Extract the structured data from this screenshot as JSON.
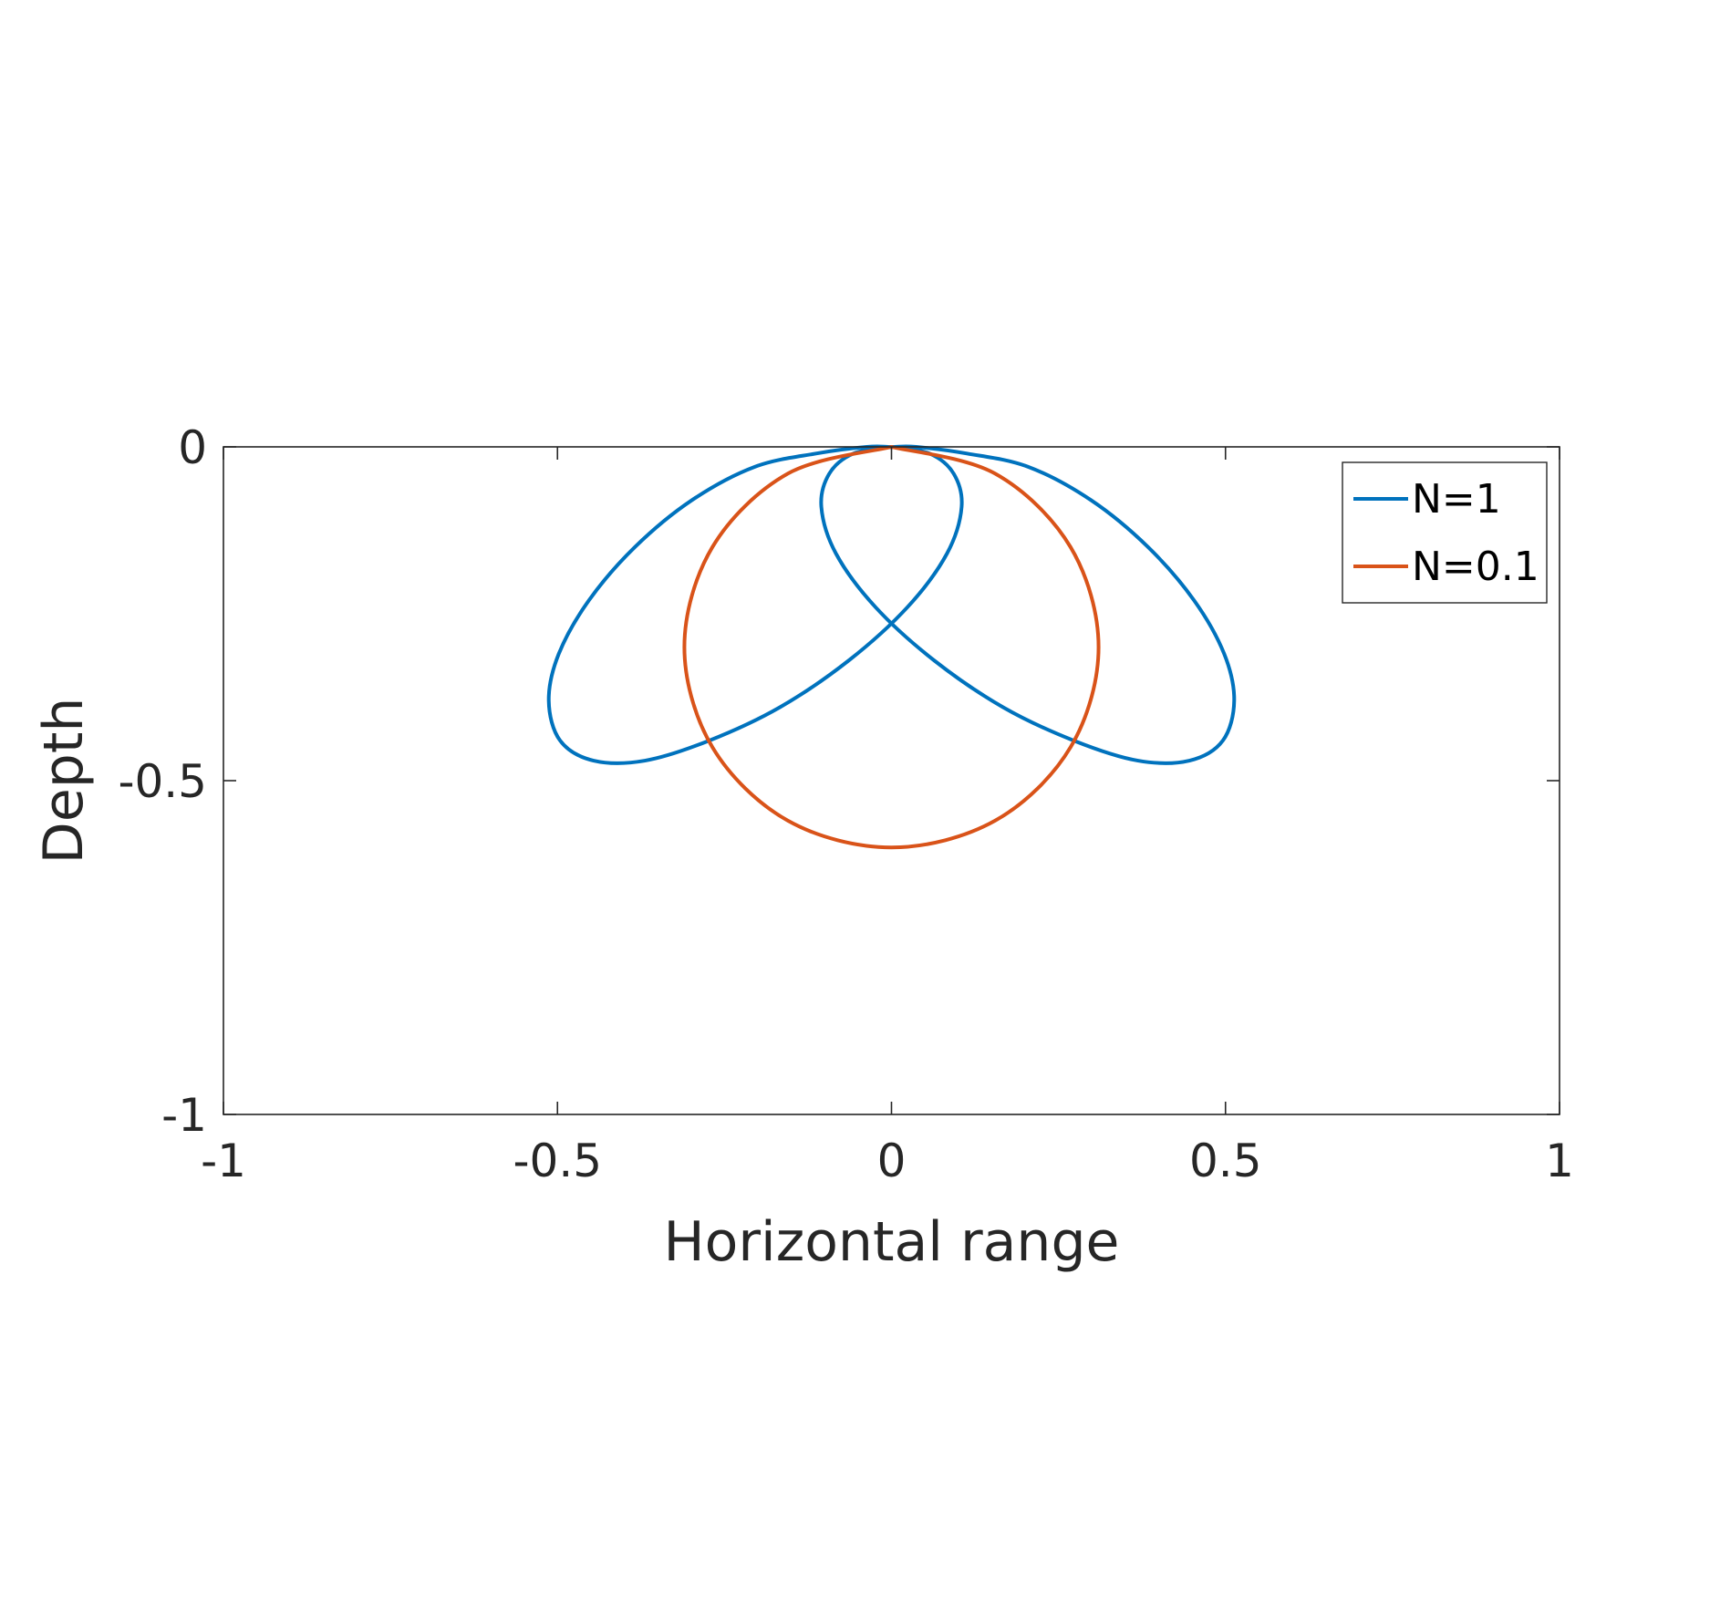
{
  "chart_data": {
    "type": "line",
    "title": "",
    "xlabel": "Horizontal range",
    "ylabel": "Depth",
    "xlim": [
      -1,
      1
    ],
    "ylim": [
      -1,
      0
    ],
    "xticks": [
      -1,
      -0.5,
      0,
      0.5,
      1
    ],
    "xtick_labels": [
      "-1",
      "-0.5",
      "0",
      "0.5",
      "1"
    ],
    "yticks": [
      0,
      -0.5,
      -1
    ],
    "ytick_labels": [
      "0",
      "-0.5",
      "-1"
    ],
    "grid": false,
    "legend_position": "top-right",
    "series": [
      {
        "name": "N=1",
        "color": "#0072BD",
        "description_curve": "four-petal radiation pattern",
        "x": [
          0,
          0.057,
          0.093,
          0.105,
          0.083,
          0.024,
          -0.064,
          -0.167,
          -0.273,
          -0.369,
          -0.446,
          -0.496,
          -0.513,
          -0.498,
          -0.453,
          -0.384,
          -0.299,
          -0.205,
          -0.113,
          -0.037,
          0,
          0.037,
          0.113,
          0.205,
          0.299,
          0.384,
          0.453,
          0.498,
          0.513,
          0.496,
          0.446,
          0.369,
          0.273,
          0.167,
          0.064,
          -0.024,
          -0.083,
          -0.105,
          -0.093,
          -0.057,
          0
        ],
        "y": [
          0,
          -0.01,
          -0.04,
          -0.09,
          -0.16,
          -0.24,
          -0.32,
          -0.39,
          -0.44,
          -0.47,
          -0.47,
          -0.44,
          -0.38,
          -0.31,
          -0.23,
          -0.15,
          -0.08,
          -0.03,
          -0.01,
          0,
          0,
          0,
          -0.01,
          -0.03,
          -0.08,
          -0.15,
          -0.23,
          -0.31,
          -0.38,
          -0.44,
          -0.47,
          -0.47,
          -0.44,
          -0.39,
          -0.32,
          -0.24,
          -0.16,
          -0.09,
          -0.04,
          -0.01,
          0
        ]
      },
      {
        "name": "N=0.1",
        "color": "#D95319",
        "description_curve": "circle",
        "x": [
          0,
          0.155,
          0.268,
          0.31,
          0.268,
          0.155,
          0,
          -0.155,
          -0.268,
          -0.31,
          -0.268,
          -0.155,
          0
        ],
        "y": [
          0,
          -0.04,
          -0.15,
          -0.3,
          -0.45,
          -0.56,
          -0.6,
          -0.56,
          -0.45,
          -0.3,
          -0.15,
          -0.04,
          0
        ]
      }
    ]
  },
  "legend": {
    "items": [
      "N=1",
      "N=0.1"
    ]
  }
}
